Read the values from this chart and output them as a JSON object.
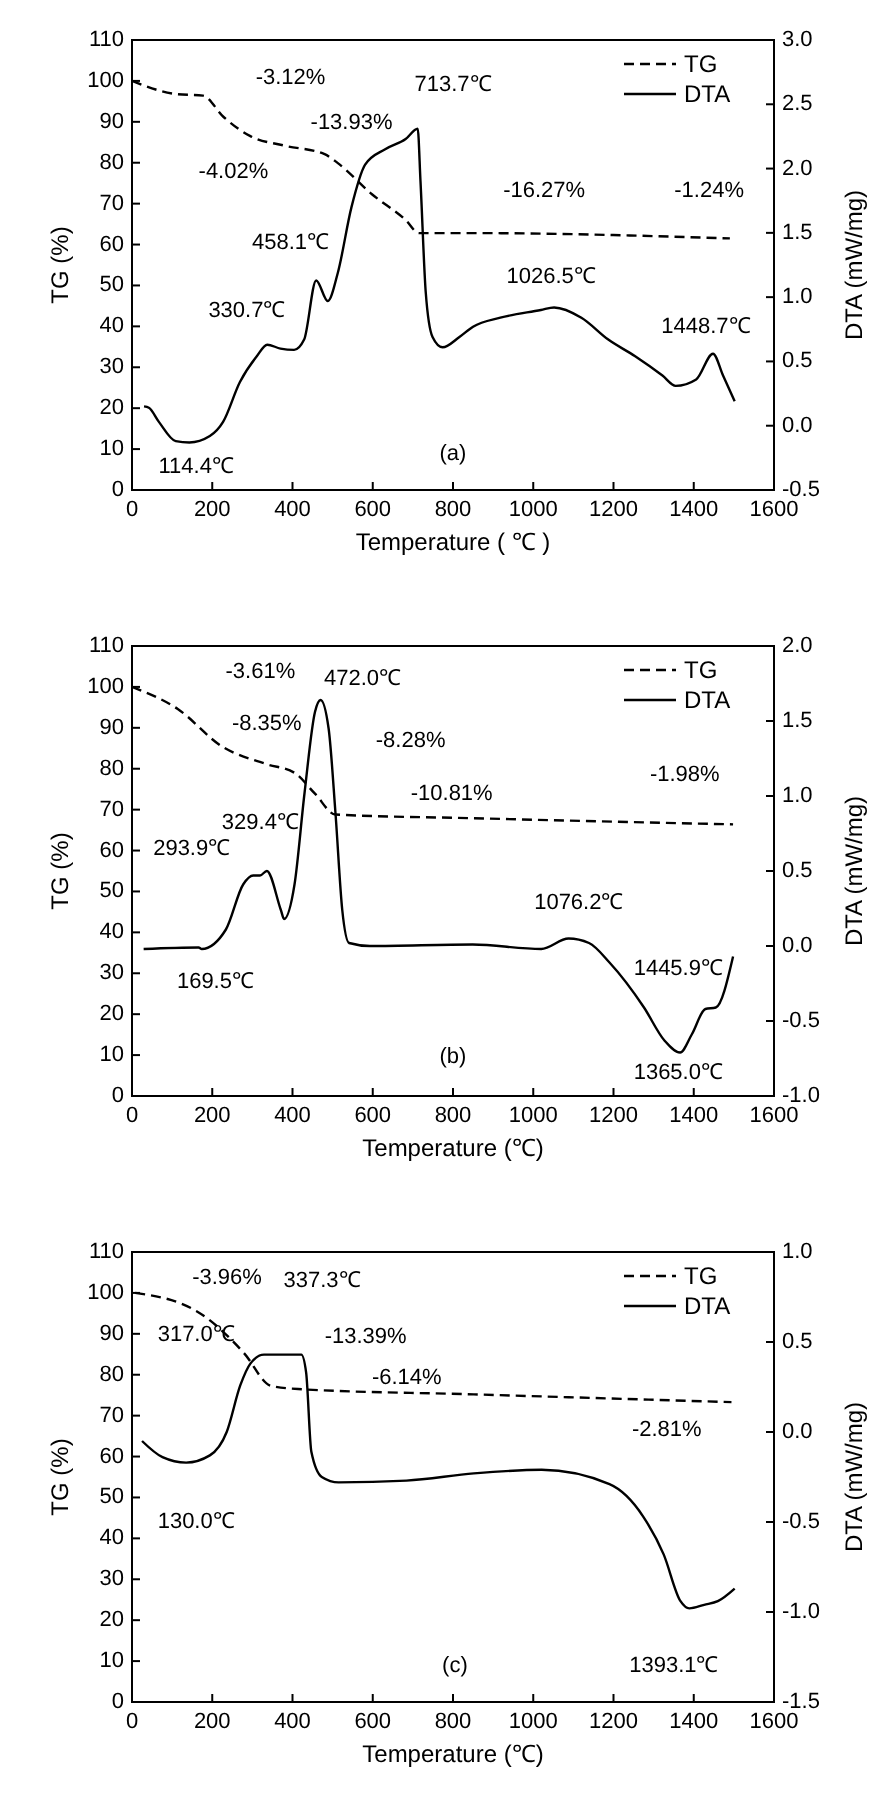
{
  "chart_data": [
    {
      "type": "line",
      "xlabel": "Temperature ( ℃ )",
      "ylabel": "TG (%)",
      "y2label": "DTA (mW/mg)",
      "xlim": [
        0,
        1600
      ],
      "xticks": [
        0,
        200,
        400,
        600,
        800,
        1000,
        1200,
        1400,
        1600
      ],
      "ylim": [
        0,
        110
      ],
      "yticks": [
        0,
        10,
        20,
        30,
        40,
        50,
        60,
        70,
        80,
        90,
        100,
        110
      ],
      "y2lim": [
        -0.5,
        3.0
      ],
      "y2ticks": [
        -0.5,
        {
          "value": 0,
          "label": "0.0"
        },
        0.5,
        {
          "value": 1,
          "label": "1.0"
        },
        1.5,
        {
          "value": 2,
          "label": "2.0"
        },
        2.5,
        {
          "value": 3,
          "label": "3.0"
        }
      ],
      "legend": "top right",
      "series": [
        {
          "name": "TG",
          "color": "#000000",
          "line_style": "dashed",
          "x": [
            0,
            109,
            177,
            227,
            295,
            379,
            480,
            513,
            598,
            682,
            715,
            850,
            1490
          ],
          "values": [
            100,
            96.8,
            96.4,
            91.3,
            86.5,
            84.2,
            82.1,
            79.9,
            72.3,
            66,
            62.8,
            62.8,
            61.5
          ]
        },
        {
          "name": "DTA",
          "color": "#000000",
          "line_style": "solid",
          "axis": "y2",
          "x": [
            30,
            42,
            67,
            109,
            143,
            194,
            227,
            269,
            311,
            337,
            370,
            404,
            429,
            459,
            488,
            513,
            547,
            581,
            631,
            682,
            712,
            719,
            732,
            749,
            774,
            816,
            850,
            918,
            1019,
            1052,
            1120,
            1187,
            1254,
            1322,
            1355,
            1406,
            1448,
            1473,
            1502
          ],
          "values": [
            0.15,
            0.14,
            0.03,
            -0.12,
            -0.13,
            -0.08,
            0.03,
            0.34,
            0.54,
            0.63,
            0.6,
            0.59,
            0.67,
            1.13,
            0.97,
            1.19,
            1.7,
            2.03,
            2.15,
            2.23,
            2.31,
            1.9,
            1.04,
            0.69,
            0.61,
            0.69,
            0.77,
            0.84,
            0.9,
            0.92,
            0.84,
            0.67,
            0.54,
            0.39,
            0.31,
            0.36,
            0.56,
            0.39,
            0.19
          ]
        }
      ],
      "annotations": [
        "-3.12%",
        "-13.93%",
        "-4.02%",
        "-16.27%",
        "-1.24%",
        "713.7℃",
        "458.1℃",
        "330.7℃",
        "1026.5℃",
        "1448.7℃",
        "114.4℃",
        "(a)"
      ]
    },
    {
      "type": "line",
      "xlabel": "Temperature (℃)",
      "ylabel": "TG (%)",
      "y2label": "DTA (mW/mg)",
      "xlim": [
        0,
        1600
      ],
      "xticks": [
        0,
        200,
        400,
        600,
        800,
        1000,
        1200,
        1400,
        1600
      ],
      "ylim": [
        0,
        110
      ],
      "yticks": [
        0,
        10,
        20,
        30,
        40,
        50,
        60,
        70,
        80,
        90,
        100,
        110
      ],
      "y2lim": [
        -1.0,
        2.0
      ],
      "y2ticks": [
        {
          "value": -1,
          "label": "-1.0"
        },
        -0.5,
        {
          "value": 0,
          "label": "0.0"
        },
        0.5,
        {
          "value": 1,
          "label": "1.0"
        },
        1.5,
        {
          "value": 2,
          "label": "2.0"
        }
      ],
      "legend": "top right",
      "series": [
        {
          "name": "TG",
          "color": "#000000",
          "line_style": "dashed",
          "x": [
            0,
            114,
            225,
            336,
            405,
            456,
            507,
            849,
            1498
          ],
          "values": [
            100,
            94.6,
            85.4,
            81.1,
            79,
            73.9,
            68.8,
            67.9,
            66.4
          ]
        },
        {
          "name": "DTA",
          "color": "#000000",
          "line_style": "solid",
          "axis": "y2",
          "x": [
            29,
            166,
            174,
            234,
            277,
            302,
            319,
            336,
            371,
            379,
            405,
            430,
            456,
            470,
            490,
            507,
            524,
            541,
            593,
            849,
            1020,
            1088,
            1139,
            1190,
            1276,
            1327,
            1366,
            1395,
            1429,
            1455,
            1498
          ],
          "values": [
            -0.02,
            -0.01,
            -0.02,
            0.11,
            0.41,
            0.47,
            0.47,
            0.5,
            0.24,
            0.18,
            0.41,
            1.02,
            1.56,
            1.64,
            1.45,
            0.89,
            0.24,
            0.02,
            0,
            0.01,
            -0.02,
            0.05,
            0.02,
            -0.11,
            -0.41,
            -0.63,
            -0.71,
            -0.59,
            -0.42,
            -0.41,
            -0.07
          ]
        }
      ],
      "annotations": [
        "-3.61%",
        "-8.35%",
        "-8.28%",
        "-10.81%",
        "-1.98%",
        "472.0℃",
        "329.4℃",
        "293.9℃",
        "169.5℃",
        "1076.2℃",
        "1445.9℃",
        "1365.0℃",
        "(b)"
      ]
    },
    {
      "type": "line",
      "xlabel": "Temperature (℃)",
      "ylabel": "TG (%)",
      "y2label": "DTA (mW/mg)",
      "xlim": [
        0,
        1600
      ],
      "xticks": [
        0,
        200,
        400,
        600,
        800,
        1000,
        1200,
        1400,
        1600
      ],
      "ylim": [
        0,
        110
      ],
      "yticks": [
        0,
        10,
        20,
        30,
        40,
        50,
        60,
        70,
        80,
        90,
        100,
        110
      ],
      "y2lim": [
        -1.5,
        1.0
      ],
      "y2ticks": [
        -1.5,
        {
          "value": -1,
          "label": "-1.0"
        },
        -0.5,
        {
          "value": 0,
          "label": "0.0"
        },
        0.5,
        {
          "value": 1,
          "label": "1.0"
        }
      ],
      "legend": "top right",
      "series": [
        {
          "name": "TG",
          "color": "#000000",
          "line_style": "dashed",
          "x": [
            8,
            160,
            279,
            346,
            414,
            852,
            1494
          ],
          "values": [
            100,
            95.6,
            85.3,
            77.3,
            76.5,
            75.2,
            73.3
          ]
        },
        {
          "name": "DTA",
          "color": "#000000",
          "line_style": "solid",
          "axis": "y2",
          "x": [
            25,
            76,
            135,
            194,
            236,
            270,
            295,
            329,
            346,
            422,
            434,
            447,
            473,
            515,
            684,
            852,
            1021,
            1190,
            1274,
            1325,
            1367,
            1389,
            1426,
            1460,
            1502
          ],
          "values": [
            -0.05,
            -0.14,
            -0.17,
            -0.13,
            0,
            0.26,
            0.38,
            0.43,
            0.43,
            0.43,
            0.33,
            -0.11,
            -0.25,
            -0.28,
            -0.27,
            -0.23,
            -0.21,
            -0.29,
            -0.47,
            -0.68,
            -0.94,
            -0.98,
            -0.96,
            -0.94,
            -0.87
          ]
        }
      ],
      "annotations": [
        "-3.96%",
        "337.3℃",
        "-13.39%",
        "317.0℃",
        "-6.14%",
        "-2.81%",
        "130.0℃",
        "1393.1℃",
        "(c)"
      ]
    }
  ]
}
